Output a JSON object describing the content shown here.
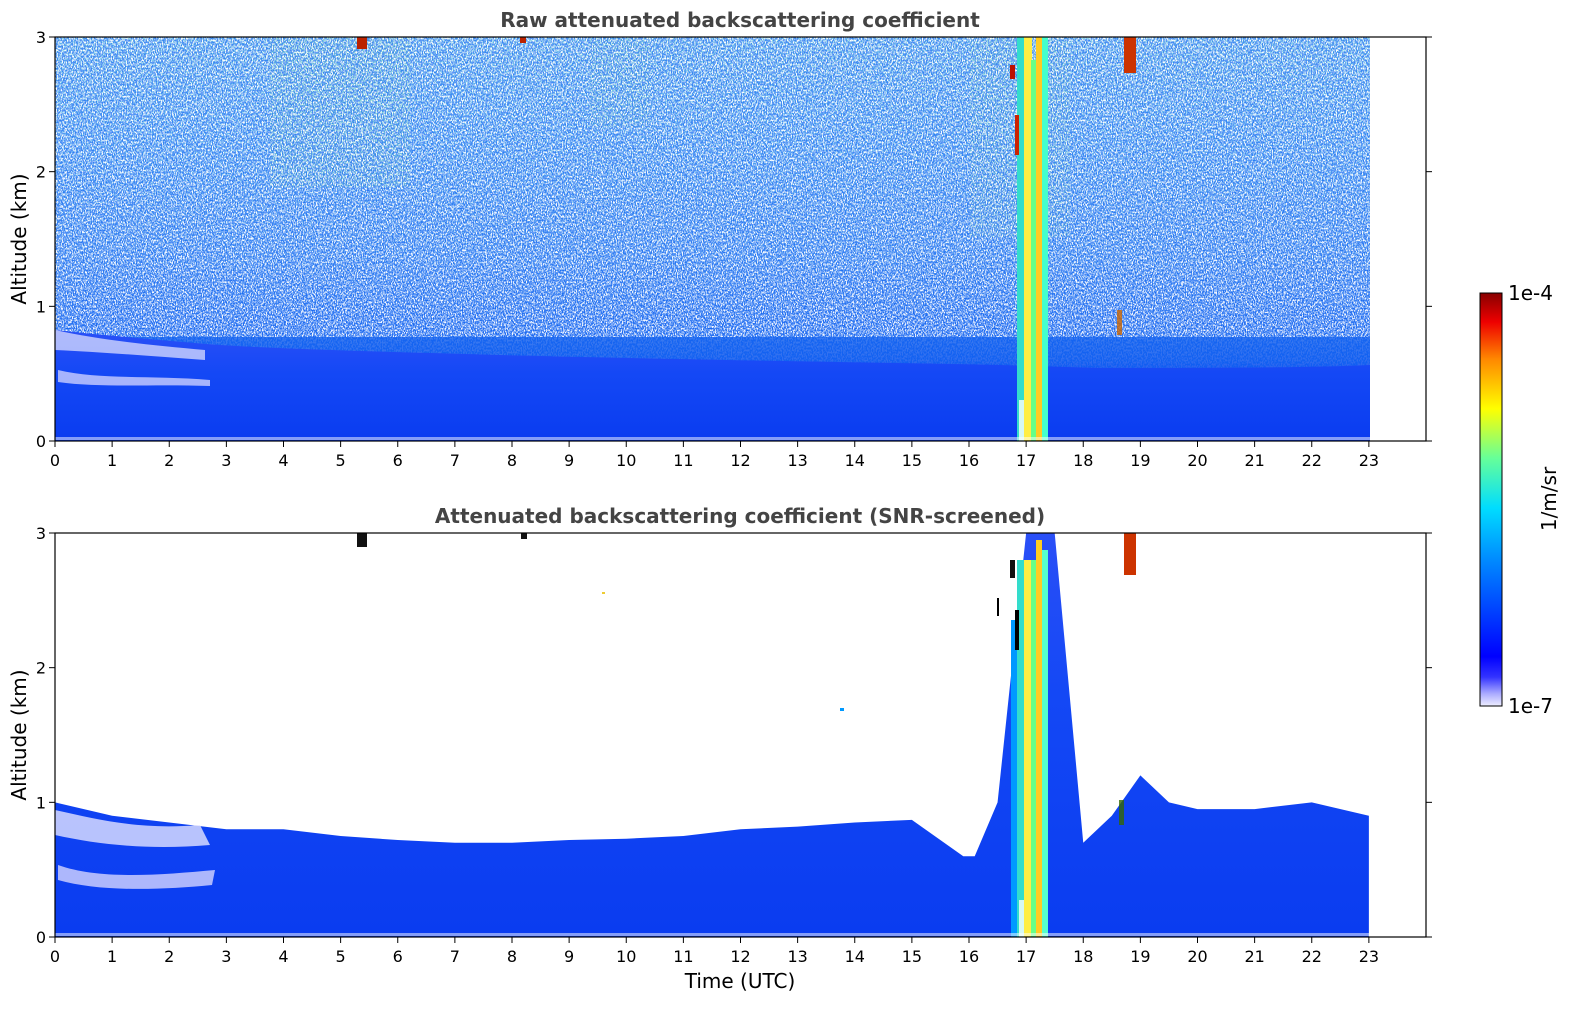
{
  "chart_data": [
    {
      "type": "heatmap",
      "title": "Raw attenuated backscattering coefficient",
      "xlabel": "",
      "ylabel": "Altitude (km)",
      "xlim": [
        0,
        24
      ],
      "ylim": [
        0,
        3
      ],
      "xticks": [
        "0",
        "1",
        "2",
        "3",
        "4",
        "5",
        "6",
        "7",
        "8",
        "9",
        "10",
        "11",
        "12",
        "13",
        "14",
        "15",
        "16",
        "17",
        "18",
        "19",
        "20",
        "21",
        "22",
        "23"
      ],
      "yticks": [
        "0",
        "1",
        "2",
        "3"
      ],
      "data_x_range": [
        0,
        23
      ],
      "features": {
        "boundary_layer_top_km": 0.6,
        "cloud_columns_utc": [
          16.9,
          17.4
        ],
        "high_cloud_utc": [
          5.4,
          8.2,
          18.7
        ]
      }
    },
    {
      "type": "heatmap",
      "title": "Attenuated backscattering coefficient (SNR-screened)",
      "xlabel": "Time (UTC)",
      "ylabel": "Altitude (km)",
      "xlim": [
        0,
        24
      ],
      "ylim": [
        0,
        3
      ],
      "xticks": [
        "0",
        "1",
        "2",
        "3",
        "4",
        "5",
        "6",
        "7",
        "8",
        "9",
        "10",
        "11",
        "12",
        "13",
        "14",
        "15",
        "16",
        "17",
        "18",
        "19",
        "20",
        "21",
        "22",
        "23"
      ],
      "yticks": [
        "0",
        "1",
        "2",
        "3"
      ],
      "data_x_range": [
        0,
        23
      ],
      "boundary_layer_top": {
        "x": [
          0,
          1,
          2,
          3,
          4,
          5,
          6,
          7,
          8,
          9,
          10,
          11,
          12,
          13,
          14,
          15,
          15.9,
          16.1,
          16.5,
          17,
          17.5,
          18,
          18.5,
          19,
          19.5,
          20,
          21,
          22,
          23
        ],
        "y": [
          1.0,
          0.9,
          0.85,
          0.8,
          0.8,
          0.75,
          0.72,
          0.7,
          0.7,
          0.72,
          0.73,
          0.75,
          0.8,
          0.82,
          0.85,
          0.87,
          0.6,
          0.6,
          1.0,
          3.0,
          3.0,
          0.7,
          0.9,
          1.2,
          1.0,
          0.95,
          0.95,
          1.0,
          0.9
        ]
      }
    }
  ],
  "colorbar": {
    "label": "1/m/sr",
    "max_label": "1e-4",
    "min_label": "1e-7",
    "scale": "log",
    "colormap": "jet"
  }
}
